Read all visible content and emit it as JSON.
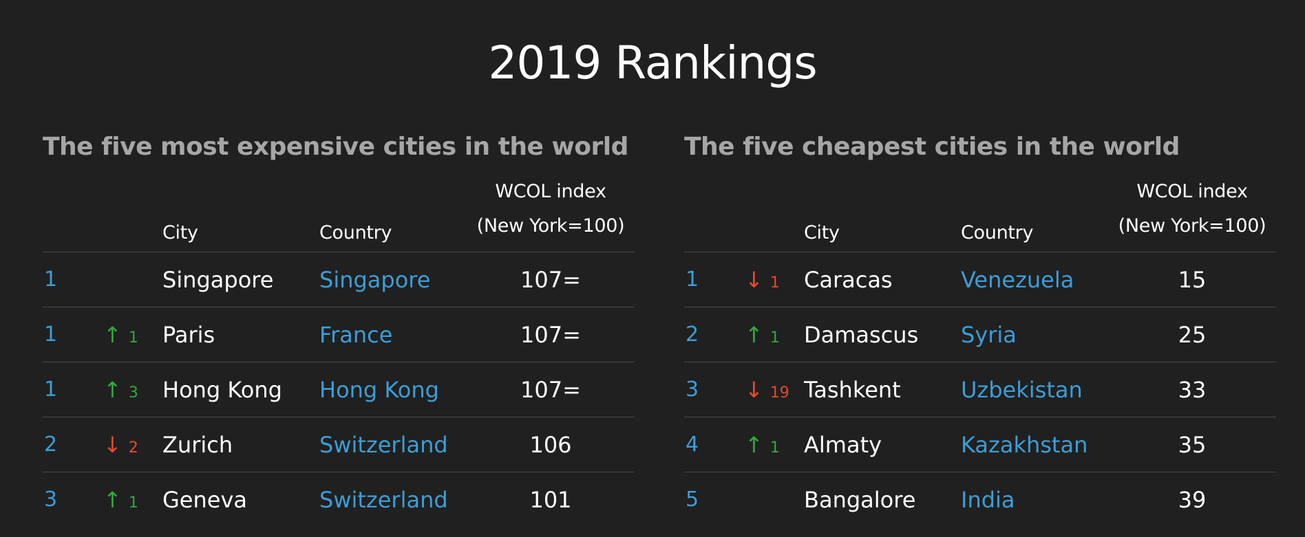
{
  "title": "2019 Rankings",
  "expensive": {
    "heading": "The five most expensive cities in the world",
    "headers": {
      "city": "City",
      "country": "Country",
      "index_line1": "WCOL index",
      "index_line2": "(New York=100)"
    },
    "rows": [
      {
        "rank": "1",
        "dir": "",
        "arrow": "",
        "change": "",
        "city": "Singapore",
        "country": "Singapore",
        "index": "107="
      },
      {
        "rank": "1",
        "dir": "up",
        "arrow": "↑",
        "change": "1",
        "city": "Paris",
        "country": "France",
        "index": "107="
      },
      {
        "rank": "1",
        "dir": "up",
        "arrow": "↑",
        "change": "3",
        "city": "Hong Kong",
        "country": "Hong Kong",
        "index": "107="
      },
      {
        "rank": "2",
        "dir": "down",
        "arrow": "↓",
        "change": "2",
        "city": "Zurich",
        "country": "Switzerland",
        "index": "106"
      },
      {
        "rank": "3",
        "dir": "up",
        "arrow": "↑",
        "change": "1",
        "city": "Geneva",
        "country": "Switzerland",
        "index": "101"
      }
    ]
  },
  "cheapest": {
    "heading": "The five cheapest cities in the world",
    "headers": {
      "city": "City",
      "country": "Country",
      "index_line1": "WCOL index",
      "index_line2": "(New York=100)"
    },
    "rows": [
      {
        "rank": "1",
        "dir": "down",
        "arrow": "↓",
        "change": "1",
        "city": "Caracas",
        "country": "Venezuela",
        "index": "15"
      },
      {
        "rank": "2",
        "dir": "up",
        "arrow": "↑",
        "change": "1",
        "city": "Damascus",
        "country": "Syria",
        "index": "25"
      },
      {
        "rank": "3",
        "dir": "down",
        "arrow": "↓",
        "change": "19",
        "city": "Tashkent",
        "country": "Uzbekistan",
        "index": "33"
      },
      {
        "rank": "4",
        "dir": "up",
        "arrow": "↑",
        "change": "1",
        "city": "Almaty",
        "country": "Kazakhstan",
        "index": "35"
      },
      {
        "rank": "5",
        "dir": "",
        "arrow": "",
        "change": "",
        "city": "Bangalore",
        "country": "India",
        "index": "39"
      }
    ]
  },
  "colors": {
    "background": "#202020",
    "heading": "#a6a6a6",
    "link": "#3d9dd6",
    "up": "#2eaa3a",
    "down": "#e6492d"
  }
}
